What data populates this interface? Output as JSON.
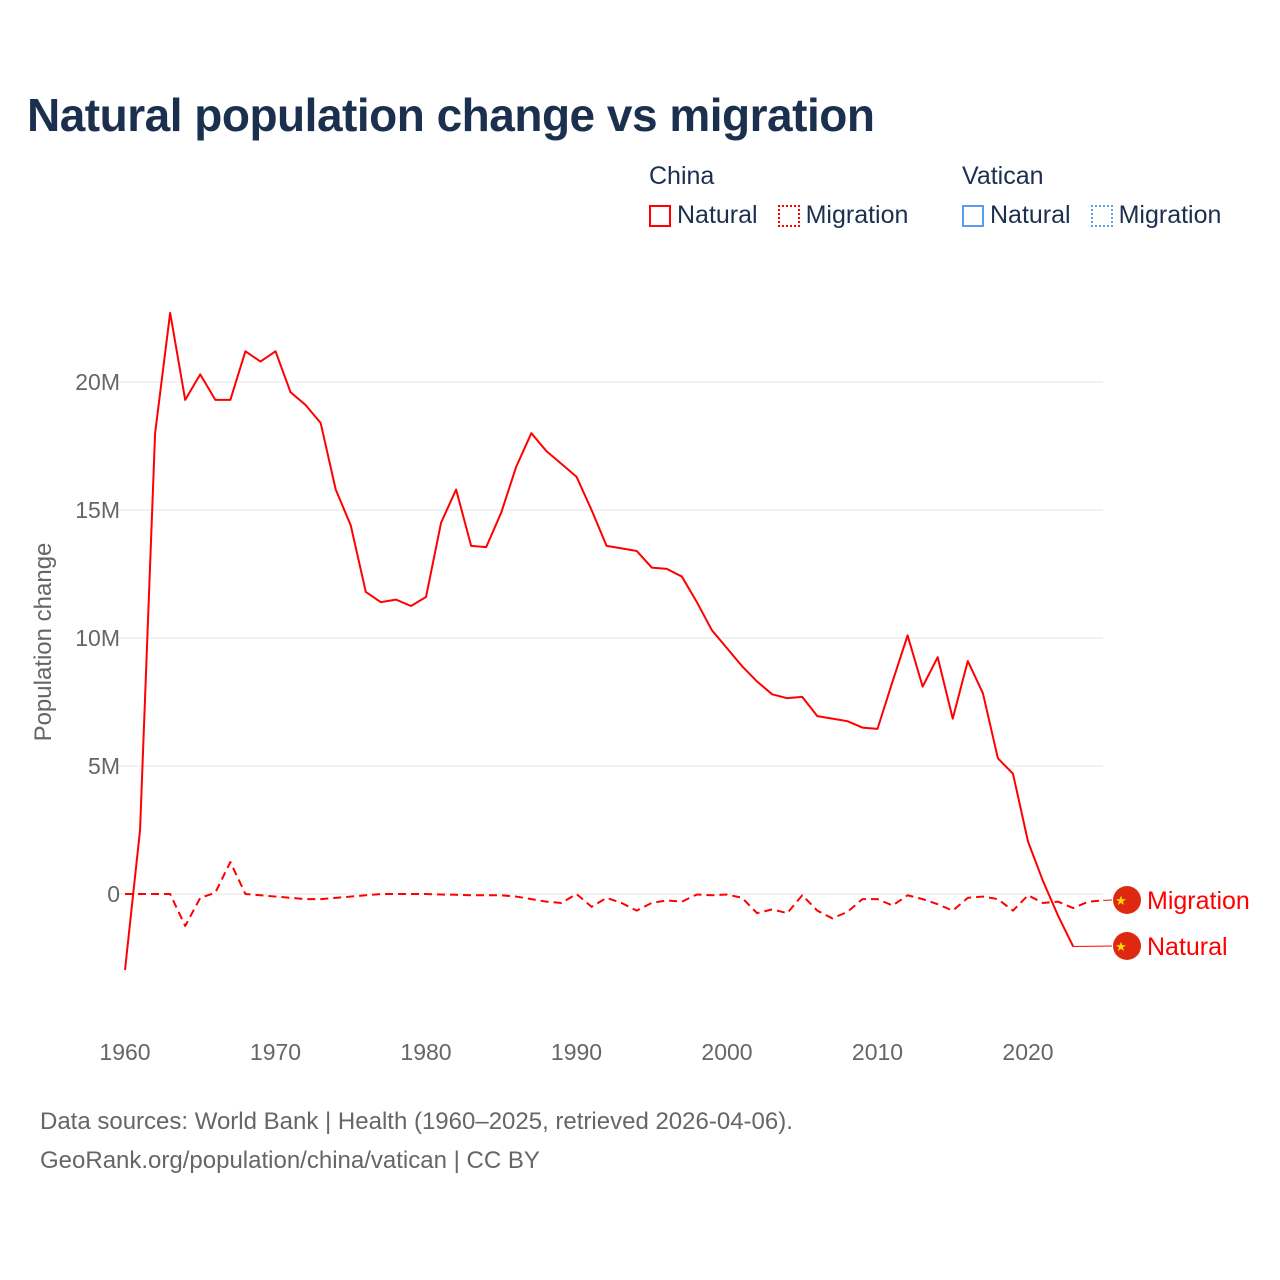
{
  "colors": {
    "china": "#ff0000",
    "vatican": "#5b9bf0",
    "title": "#1b2f4e",
    "grid": "#e6e6e6",
    "axis_text": "#666666"
  },
  "chart_data": {
    "type": "line",
    "title": "Natural population change vs migration",
    "xlabel": "",
    "ylabel": "Population change",
    "xlim": [
      1960,
      2025
    ],
    "ylim": [
      -4000000,
      24000000
    ],
    "x_ticks": [
      1960,
      1970,
      1980,
      1990,
      2000,
      2010,
      2020
    ],
    "y_ticks": [
      {
        "v": 0,
        "label": "0"
      },
      {
        "v": 5000000,
        "label": "5M"
      },
      {
        "v": 10000000,
        "label": "10M"
      },
      {
        "v": 15000000,
        "label": "15M"
      },
      {
        "v": 20000000,
        "label": "20M"
      }
    ],
    "grid": true,
    "legend": {
      "placement": "top-right",
      "groups": [
        {
          "name": "China",
          "items": [
            {
              "label": "Natural",
              "style": "solid"
            },
            {
              "label": "Migration",
              "style": "dotted"
            }
          ]
        },
        {
          "name": "Vatican",
          "items": [
            {
              "label": "Natural",
              "style": "solid"
            },
            {
              "label": "Migration",
              "style": "dotted"
            }
          ]
        }
      ]
    },
    "series": [
      {
        "name": "China Natural",
        "country": "China",
        "kind": "Natural",
        "end_label": "Natural",
        "x_start": 1960,
        "values": [
          -2970000,
          2500000,
          18000000,
          22700000,
          19300000,
          20300000,
          19300000,
          19300000,
          21200000,
          20800000,
          21200000,
          19600000,
          19100000,
          18400000,
          15800000,
          14400000,
          11800000,
          11400000,
          11500000,
          11250000,
          11600000,
          14500000,
          15800000,
          13600000,
          13550000,
          14900000,
          16700000,
          18000000,
          17300000,
          16800000,
          16300000,
          15000000,
          13600000,
          13500000,
          13400000,
          12750000,
          12700000,
          12400000,
          11400000,
          10300000,
          9600000,
          8900000,
          8300000,
          7800000,
          7650000,
          7700000,
          6950000,
          6850000,
          6750000,
          6500000,
          6450000,
          8300000,
          10100000,
          8100000,
          9250000,
          6850000,
          9100000,
          7850000,
          5300000,
          4700000,
          2050000,
          500000,
          -850000,
          -2050000
        ]
      },
      {
        "name": "China Migration",
        "country": "China",
        "kind": "Migration",
        "end_label": "Migration",
        "x_start": 1960,
        "values": [
          0,
          0,
          0,
          0,
          -1250000,
          -150000,
          50000,
          1250000,
          0,
          -50000,
          -100000,
          -150000,
          -200000,
          -200000,
          -150000,
          -100000,
          -50000,
          0,
          0,
          0,
          0,
          -20000,
          -30000,
          -50000,
          -50000,
          -50000,
          -100000,
          -200000,
          -300000,
          -350000,
          0,
          -500000,
          -150000,
          -350000,
          -650000,
          -350000,
          -250000,
          -300000,
          -20000,
          -50000,
          -20000,
          -150000,
          -750000,
          -600000,
          -750000,
          -50000,
          -650000,
          -950000,
          -700000,
          -200000,
          -200000,
          -450000,
          -50000,
          -200000,
          -400000,
          -650000,
          -150000,
          -100000,
          -200000,
          -650000,
          -50000,
          -350000,
          -300000,
          -550000,
          -300000,
          -250000
        ]
      }
    ]
  },
  "footer": {
    "line1": "Data sources: World Bank | Health (1960–2025, retrieved 2026-04-06).",
    "line2": "GeoRank.org/population/china/vatican | CC BY"
  }
}
